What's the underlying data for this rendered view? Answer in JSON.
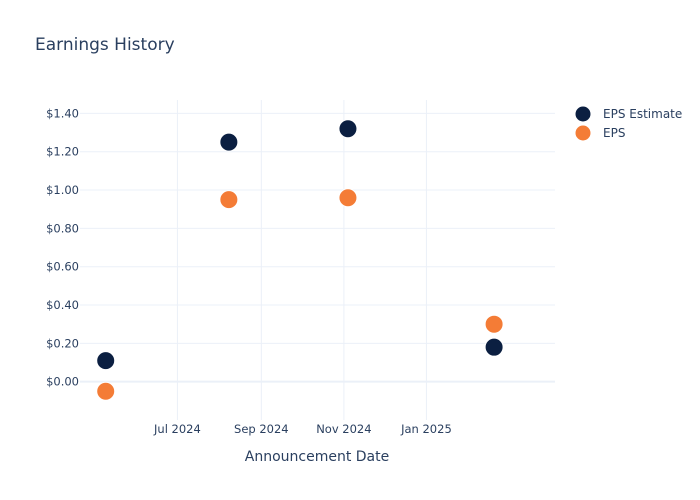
{
  "chart_data": {
    "type": "scatter",
    "title": "Earnings History",
    "xlabel": "Announcement Date",
    "ylabel": "",
    "x_ticks": [
      "Jul 2024",
      "Sep 2024",
      "Nov 2024",
      "Jan 2025"
    ],
    "x_tick_dates": [
      "2024-07-01",
      "2024-09-01",
      "2024-11-01",
      "2025-01-01"
    ],
    "xlim": [
      "2024-04-20",
      "2025-04-06"
    ],
    "y_ticks": [
      "$0.00",
      "$0.20",
      "$0.40",
      "$0.60",
      "$0.80",
      "$1.00",
      "$1.20",
      "$1.40"
    ],
    "y_tick_values": [
      0,
      0.2,
      0.4,
      0.6,
      0.8,
      1.0,
      1.2,
      1.4
    ],
    "ylim": [
      -0.2,
      1.47
    ],
    "grid": true,
    "legend_position": "top-right",
    "series": [
      {
        "name": "EPS Estimate",
        "color": "#0b1f41",
        "points": [
          {
            "x": "2024-05-09",
            "y": 0.11
          },
          {
            "x": "2024-08-08",
            "y": 1.25
          },
          {
            "x": "2024-11-04",
            "y": 1.32
          },
          {
            "x": "2025-02-20",
            "y": 0.18
          }
        ]
      },
      {
        "name": "EPS",
        "color": "#f47c36",
        "points": [
          {
            "x": "2024-05-09",
            "y": -0.05
          },
          {
            "x": "2024-08-08",
            "y": 0.95
          },
          {
            "x": "2024-11-04",
            "y": 0.96
          },
          {
            "x": "2025-02-20",
            "y": 0.3
          }
        ]
      }
    ]
  }
}
